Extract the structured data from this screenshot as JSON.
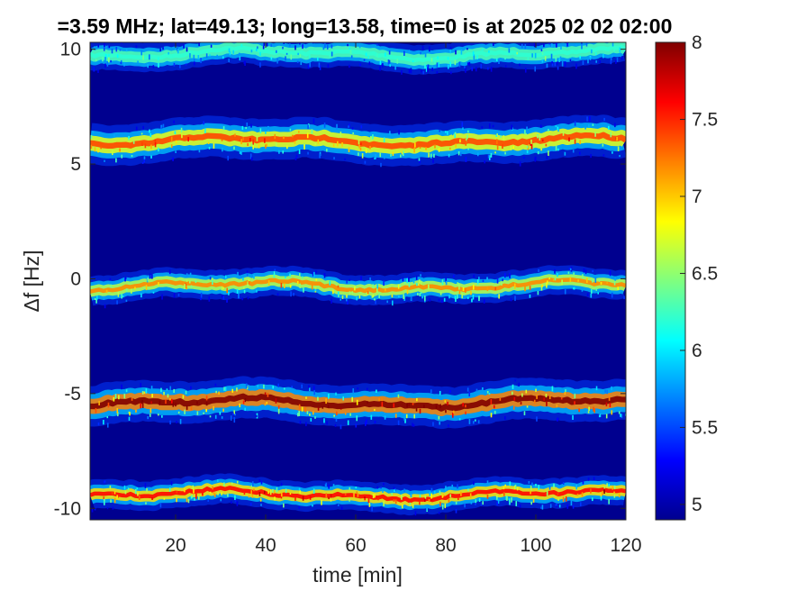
{
  "chart_data": {
    "type": "heatmap",
    "title": "=3.59 MHz;  lat=49.13; long=13.58, time=0 is at 2025 02 02 02:00",
    "xlabel": "time [min]",
    "ylabel": "Δf [Hz]",
    "xlim": [
      1,
      120
    ],
    "ylim": [
      -10.5,
      10.3
    ],
    "x_ticks": [
      20,
      40,
      60,
      80,
      100,
      120
    ],
    "y_ticks": [
      -10,
      -5,
      0,
      5,
      10
    ],
    "x_tick_labels": [
      "20",
      "40",
      "60",
      "80",
      "100",
      "120"
    ],
    "y_tick_labels": [
      "-10",
      "-5",
      "0",
      "5",
      "10"
    ],
    "colorbar": {
      "colormap": "jet",
      "range": [
        4.9,
        8.0
      ],
      "ticks": [
        5,
        5.5,
        6,
        6.5,
        7,
        7.5,
        8
      ],
      "tick_labels": [
        "5",
        "5.5",
        "6",
        "6.5",
        "7",
        "7.5",
        "8"
      ]
    },
    "background_color": "#00008f",
    "bands": [
      {
        "center_hz": 9.8,
        "peak_value": 6.2
      },
      {
        "center_hz": 6.0,
        "peak_value": 7.4
      },
      {
        "center_hz": -0.3,
        "peak_value": 7.2
      },
      {
        "center_hz": -5.4,
        "peak_value": 8.0
      },
      {
        "center_hz": -9.4,
        "peak_value": 7.6
      }
    ]
  }
}
